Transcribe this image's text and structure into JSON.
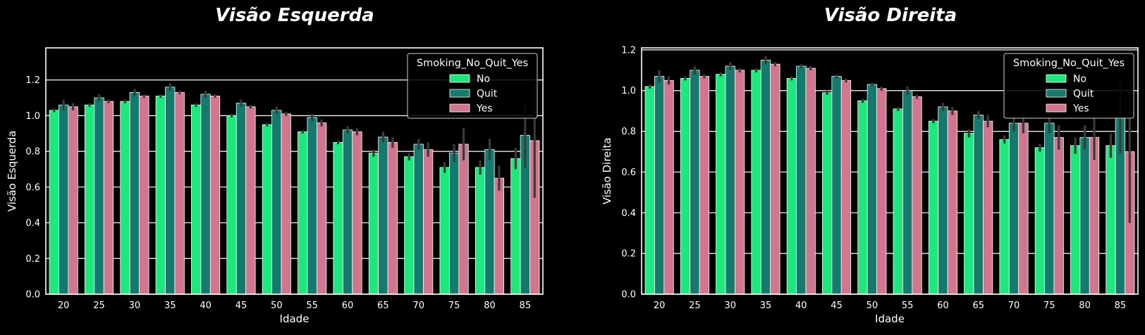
{
  "chart_data": [
    {
      "type": "bar",
      "title": "Visão Esquerda",
      "xlabel": "Idade",
      "ylabel": "Visão Esquerda",
      "categories": [
        "20",
        "25",
        "30",
        "35",
        "40",
        "45",
        "50",
        "55",
        "60",
        "65",
        "70",
        "75",
        "80",
        "85"
      ],
      "ylim": [
        0,
        1.38
      ],
      "yticks": [
        "0.0",
        "0.2",
        "0.4",
        "0.6",
        "0.8",
        "1.0",
        "1.2"
      ],
      "grid": true,
      "legend": {
        "title": "Smoking_No_Quit_Yes",
        "position": "top-right"
      },
      "series": [
        {
          "name": "No",
          "color": "#1ee77c",
          "values": [
            1.03,
            1.06,
            1.08,
            1.11,
            1.06,
            1.0,
            0.95,
            0.91,
            0.85,
            0.79,
            0.77,
            0.71,
            0.71,
            0.76
          ],
          "err": [
            0.01,
            0.01,
            0.01,
            0.01,
            0.01,
            0.01,
            0.01,
            0.01,
            0.01,
            0.02,
            0.02,
            0.03,
            0.04,
            0.06
          ]
        },
        {
          "name": "Quit",
          "color": "#157a6e",
          "values": [
            1.06,
            1.1,
            1.13,
            1.16,
            1.12,
            1.07,
            1.03,
            0.99,
            0.92,
            0.88,
            0.84,
            0.79,
            0.81,
            0.89
          ],
          "err": [
            0.03,
            0.02,
            0.02,
            0.02,
            0.02,
            0.02,
            0.02,
            0.02,
            0.02,
            0.03,
            0.03,
            0.05,
            0.06,
            0.18
          ]
        },
        {
          "name": "Yes",
          "color": "#d0768e",
          "values": [
            1.05,
            1.08,
            1.11,
            1.13,
            1.11,
            1.05,
            1.01,
            0.96,
            0.91,
            0.85,
            0.81,
            0.84,
            0.65,
            0.86
          ],
          "err": [
            0.02,
            0.01,
            0.01,
            0.01,
            0.01,
            0.01,
            0.01,
            0.02,
            0.02,
            0.03,
            0.04,
            0.09,
            0.07,
            0.32
          ]
        }
      ]
    },
    {
      "type": "bar",
      "title": "Visão Direita",
      "xlabel": "Idade",
      "ylabel": "Visão Direita",
      "categories": [
        "20",
        "25",
        "30",
        "35",
        "40",
        "45",
        "50",
        "55",
        "60",
        "65",
        "70",
        "75",
        "80",
        "85"
      ],
      "ylim": [
        0,
        1.21
      ],
      "yticks": [
        "0.0",
        "0.2",
        "0.4",
        "0.6",
        "0.8",
        "1.0",
        "1.2"
      ],
      "grid": true,
      "legend": {
        "title": "Smoking_No_Quit_Yes",
        "position": "top-right"
      },
      "series": [
        {
          "name": "No",
          "color": "#1ee77c",
          "values": [
            1.02,
            1.06,
            1.08,
            1.1,
            1.06,
            0.99,
            0.95,
            0.91,
            0.85,
            0.79,
            0.76,
            0.72,
            0.73,
            0.73
          ],
          "err": [
            0.01,
            0.01,
            0.01,
            0.01,
            0.01,
            0.01,
            0.01,
            0.01,
            0.01,
            0.02,
            0.02,
            0.02,
            0.04,
            0.06
          ]
        },
        {
          "name": "Quit",
          "color": "#157a6e",
          "values": [
            1.07,
            1.1,
            1.12,
            1.15,
            1.12,
            1.07,
            1.03,
            1.0,
            0.92,
            0.88,
            0.84,
            0.84,
            0.77,
            0.87
          ],
          "err": [
            0.03,
            0.02,
            0.02,
            0.02,
            0.01,
            0.01,
            0.01,
            0.02,
            0.02,
            0.02,
            0.04,
            0.05,
            0.06,
            0.18
          ]
        },
        {
          "name": "Yes",
          "color": "#d0768e",
          "values": [
            1.05,
            1.07,
            1.1,
            1.13,
            1.11,
            1.05,
            1.01,
            0.97,
            0.9,
            0.85,
            0.84,
            0.77,
            0.77,
            0.7
          ],
          "err": [
            0.02,
            0.01,
            0.01,
            0.01,
            0.01,
            0.01,
            0.01,
            0.01,
            0.02,
            0.03,
            0.05,
            0.06,
            0.11,
            0.35
          ]
        }
      ]
    }
  ]
}
